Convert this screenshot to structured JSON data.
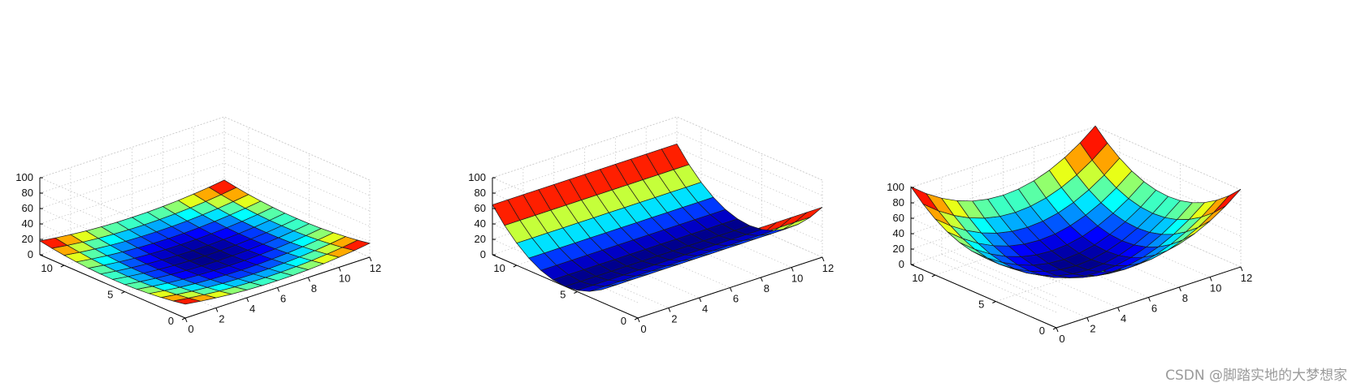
{
  "chart_data": [
    {
      "type": "surface",
      "title": "",
      "xlabel": "",
      "ylabel": "",
      "zlabel": "",
      "x": [
        0,
        1,
        2,
        3,
        4,
        5,
        6,
        7,
        8,
        9,
        10,
        11,
        12
      ],
      "y": [
        0,
        1,
        2,
        3,
        4,
        5,
        6,
        7,
        8,
        9,
        10,
        11,
        12
      ],
      "xlim": [
        0,
        12
      ],
      "ylim": [
        0,
        12
      ],
      "zlim": [
        0,
        100
      ],
      "xticks": [
        "0",
        "2",
        "4",
        "6",
        "8",
        "10",
        "12"
      ],
      "yticks": [
        "0",
        "5",
        "10"
      ],
      "zticks": [
        "0",
        "20",
        "40",
        "60",
        "80",
        "100"
      ],
      "surface_formula": "z = 0.25*((x-6)^2 + (y-6)^2)",
      "z_min": 0,
      "z_max": 18,
      "colormap": "jet",
      "grid": true
    },
    {
      "type": "surface",
      "title": "",
      "xlabel": "",
      "ylabel": "",
      "zlabel": "",
      "x": [
        0,
        1,
        2,
        3,
        4,
        5,
        6,
        7,
        8,
        9,
        10,
        11,
        12
      ],
      "y": [
        0,
        1,
        2,
        3,
        4,
        5,
        6,
        7,
        8,
        9,
        10,
        11,
        12
      ],
      "xlim": [
        0,
        12
      ],
      "ylim": [
        0,
        12
      ],
      "zlim": [
        0,
        100
      ],
      "xticks": [
        "0",
        "2",
        "4",
        "6",
        "8",
        "10",
        "12"
      ],
      "yticks": [
        "0",
        "5",
        "10"
      ],
      "zticks": [
        "0",
        "20",
        "40",
        "60",
        "80",
        "100"
      ],
      "surface_formula": "z = 1.8*(y-6)^2",
      "z_min": 0,
      "z_max": 65,
      "colormap": "jet",
      "grid": true
    },
    {
      "type": "surface",
      "title": "",
      "xlabel": "",
      "ylabel": "",
      "zlabel": "",
      "x": [
        0,
        1,
        2,
        3,
        4,
        5,
        6,
        7,
        8,
        9,
        10,
        11,
        12
      ],
      "y": [
        0,
        1,
        2,
        3,
        4,
        5,
        6,
        7,
        8,
        9,
        10,
        11,
        12
      ],
      "xlim": [
        0,
        12
      ],
      "ylim": [
        0,
        12
      ],
      "zlim": [
        0,
        100
      ],
      "xticks": [
        "0",
        "2",
        "4",
        "6",
        "8",
        "10",
        "12"
      ],
      "yticks": [
        "0",
        "5",
        "10"
      ],
      "zticks": [
        "0",
        "20",
        "40",
        "60",
        "80",
        "100"
      ],
      "surface_formula": "z = 1.4*((x-6)^2 + (y-6)^2)",
      "z_min": 0,
      "z_max": 100,
      "colormap": "jet",
      "grid": true
    }
  ],
  "watermark": "CSDN @脚踏实地的大梦想家"
}
